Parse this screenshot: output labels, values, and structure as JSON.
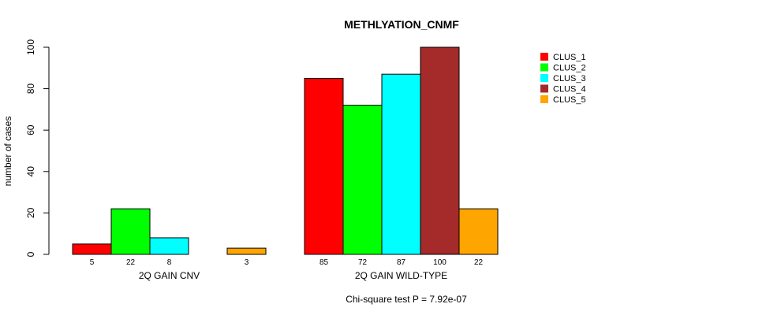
{
  "chart_data": {
    "type": "bar",
    "title": "METHLYATION_CNMF",
    "xlabel": "",
    "ylabel": "number of cases",
    "footnote": "Chi-square test P = 7.92e-07",
    "ylim": [
      0,
      100
    ],
    "yticks": [
      "0",
      "20",
      "40",
      "60",
      "80",
      "100"
    ],
    "categories": [
      "2Q GAIN CNV",
      "2Q GAIN WILD-TYPE"
    ],
    "series": [
      {
        "name": "CLUS_1",
        "color": "#ff0000",
        "values": [
          5,
          85
        ]
      },
      {
        "name": "CLUS_2",
        "color": "#00ff00",
        "values": [
          22,
          72
        ]
      },
      {
        "name": "CLUS_3",
        "color": "#00ffff",
        "values": [
          8,
          87
        ]
      },
      {
        "name": "CLUS_4",
        "color": "#a52a2a",
        "values": [
          0,
          100
        ]
      },
      {
        "name": "CLUS_5",
        "color": "#ffa500",
        "values": [
          3,
          22
        ]
      }
    ],
    "count_labels": [
      [
        "5",
        "22",
        "8",
        "",
        "3"
      ],
      [
        "85",
        "72",
        "87",
        "100",
        "22"
      ]
    ],
    "legend_position": "top-right",
    "grid": false
  }
}
